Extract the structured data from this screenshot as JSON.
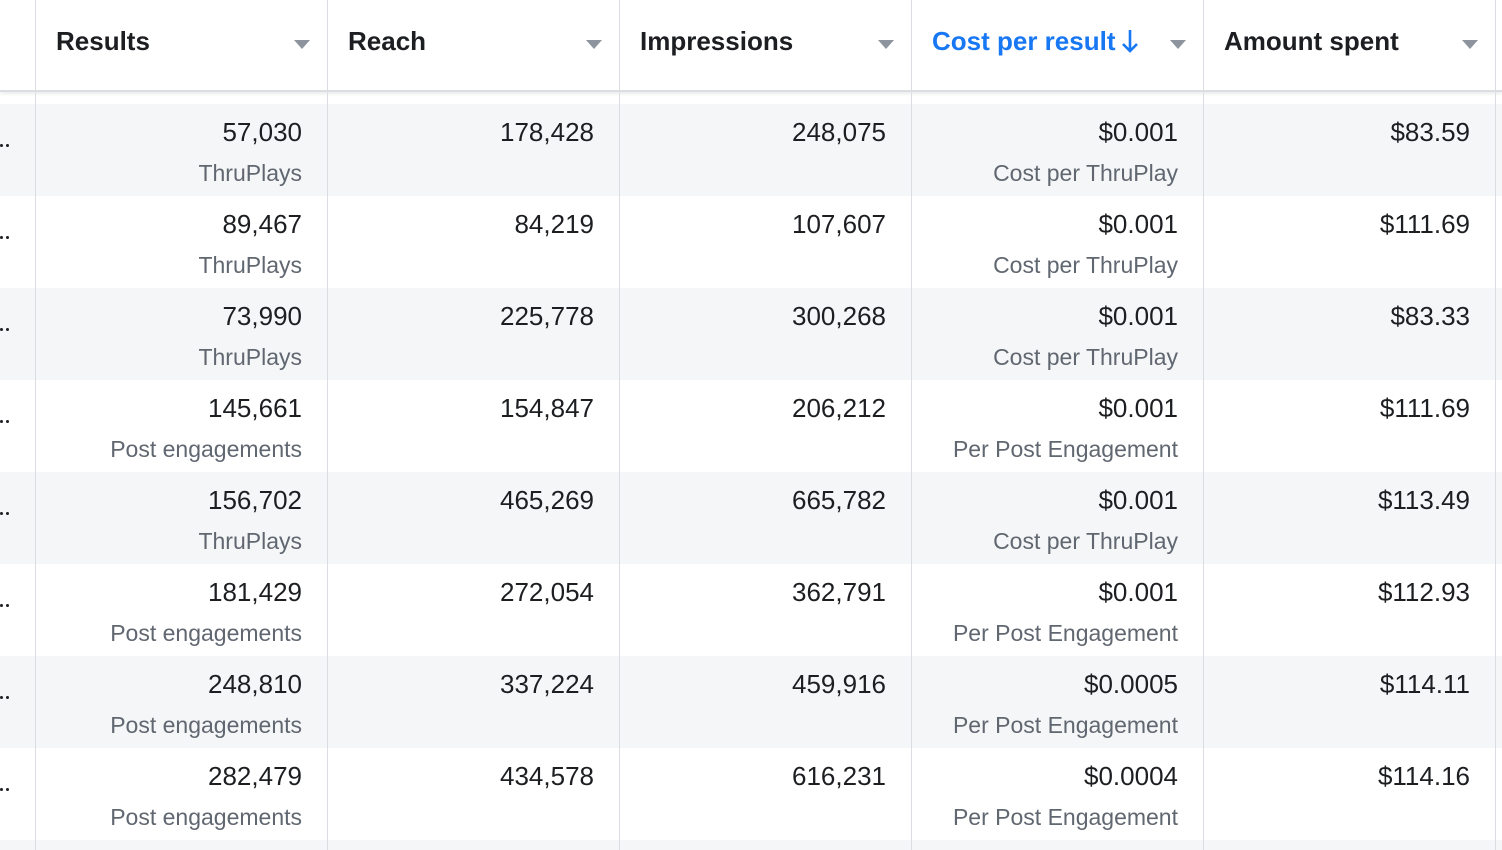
{
  "header": {
    "columns": [
      "Results",
      "Reach",
      "Impressions",
      "Cost per result",
      "Amount spent"
    ],
    "sorted_column": 3
  },
  "table": {
    "rows": [
      {
        "results": "57,030",
        "results_label": "ThruPlays",
        "reach": "178,428",
        "impressions": "248,075",
        "cost": "$0.001",
        "cost_label": "Cost per ThruPlay",
        "amount": "$83.59"
      },
      {
        "results": "89,467",
        "results_label": "ThruPlays",
        "reach": "84,219",
        "impressions": "107,607",
        "cost": "$0.001",
        "cost_label": "Cost per ThruPlay",
        "amount": "$111.69"
      },
      {
        "results": "73,990",
        "results_label": "ThruPlays",
        "reach": "225,778",
        "impressions": "300,268",
        "cost": "$0.001",
        "cost_label": "Cost per ThruPlay",
        "amount": "$83.33"
      },
      {
        "results": "145,661",
        "results_label": "Post engagements",
        "reach": "154,847",
        "impressions": "206,212",
        "cost": "$0.001",
        "cost_label": "Per Post Engagement",
        "amount": "$111.69"
      },
      {
        "results": "156,702",
        "results_label": "ThruPlays",
        "reach": "465,269",
        "impressions": "665,782",
        "cost": "$0.001",
        "cost_label": "Cost per ThruPlay",
        "amount": "$113.49"
      },
      {
        "results": "181,429",
        "results_label": "Post engagements",
        "reach": "272,054",
        "impressions": "362,791",
        "cost": "$0.001",
        "cost_label": "Per Post Engagement",
        "amount": "$112.93"
      },
      {
        "results": "248,810",
        "results_label": "Post engagements",
        "reach": "337,224",
        "impressions": "459,916",
        "cost": "$0.0005",
        "cost_label": "Per Post Engagement",
        "amount": "$114.11"
      },
      {
        "results": "282,479",
        "results_label": "Post engagements",
        "reach": "434,578",
        "impressions": "616,231",
        "cost": "$0.0004",
        "cost_label": "Per Post Engagement",
        "amount": "$114.16"
      }
    ]
  }
}
